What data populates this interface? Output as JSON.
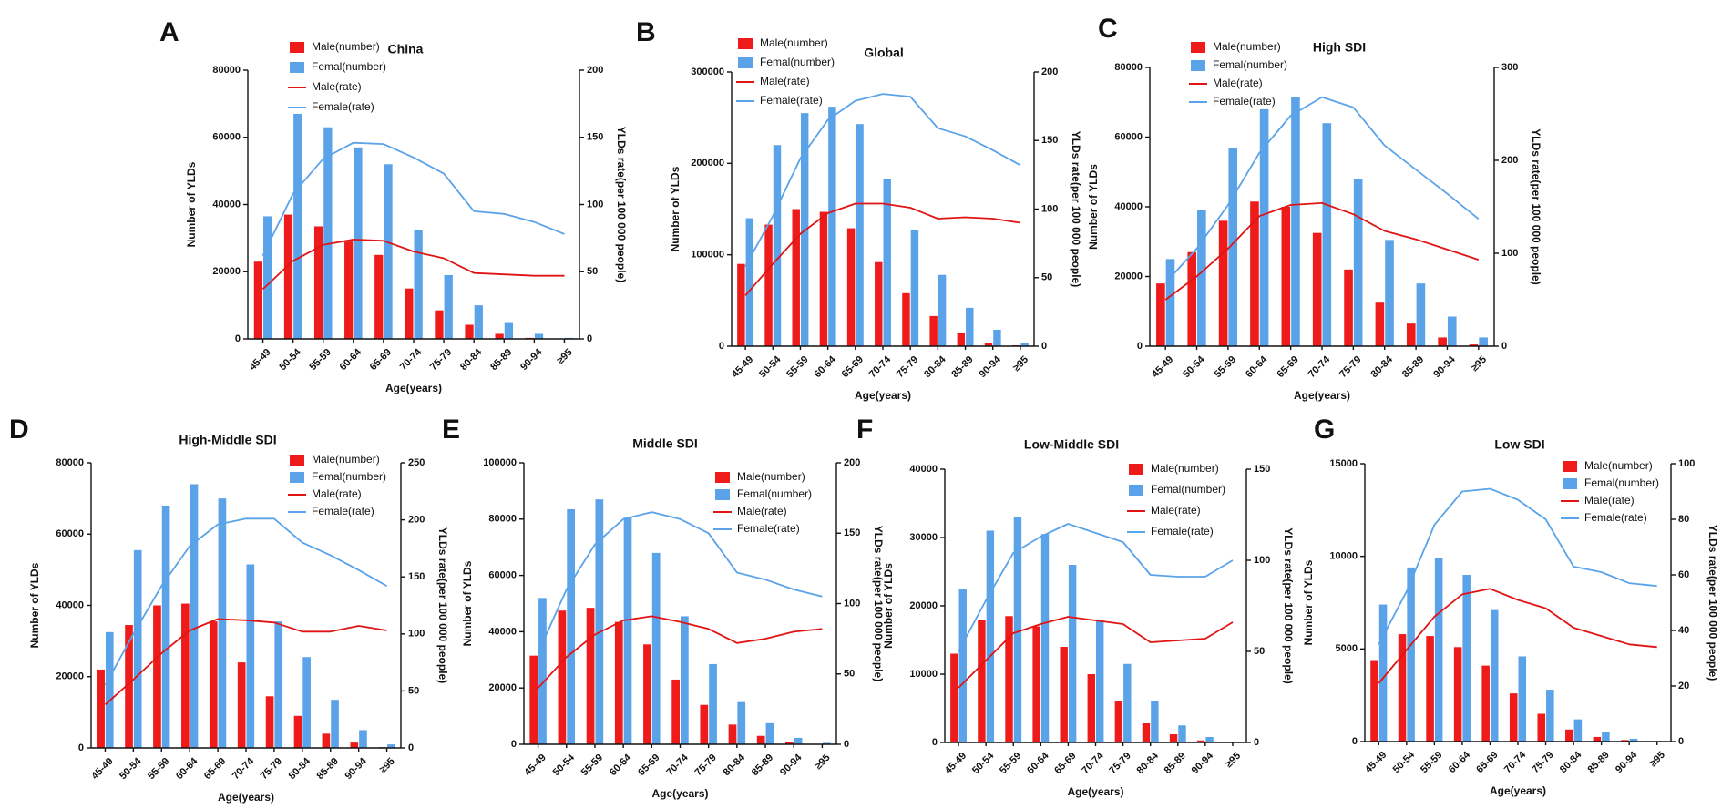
{
  "colors": {
    "male_bar": "#ef1b1b",
    "female_bar": "#5ba3e8",
    "male_line": "#e01414",
    "female_line": "#5ba3e8"
  },
  "chart_data": [
    {
      "letter": "A",
      "title": "China",
      "type": "bar+line",
      "categories": [
        "45-49",
        "50-54",
        "55-59",
        "60-64",
        "65-69",
        "70-74",
        "75-79",
        "80-84",
        "85-89",
        "90-94",
        "≥95"
      ],
      "xlabel": "Age(years)",
      "ylabel": "Number of YLDs",
      "y2label": "YLDs rate(per 100 000 people)",
      "ylim": [
        0,
        80000
      ],
      "yticks": [
        0,
        20000,
        40000,
        60000,
        80000
      ],
      "y2lim": [
        0,
        200
      ],
      "y2ticks": [
        0,
        50,
        100,
        150,
        200
      ],
      "legend": [
        "Male(number)",
        "Femal(number)",
        "Male(rate)",
        "Female(rate)"
      ],
      "series": [
        {
          "name": "Male(number)",
          "kind": "bar",
          "values": [
            23000,
            37000,
            33500,
            29000,
            25000,
            15000,
            8500,
            4200,
            1500,
            300,
            0
          ]
        },
        {
          "name": "Femal(number)",
          "kind": "bar",
          "values": [
            36500,
            67000,
            63000,
            57000,
            52000,
            32500,
            19000,
            10000,
            5000,
            1500,
            300
          ]
        },
        {
          "name": "Male(rate)",
          "kind": "line",
          "values": [
            37,
            58,
            70,
            74,
            73,
            65,
            60,
            49,
            48,
            47,
            47
          ]
        },
        {
          "name": "Female(rate)",
          "kind": "line",
          "values": [
            62,
            108,
            134,
            146,
            145,
            135,
            123,
            95,
            93,
            87,
            78
          ]
        }
      ]
    },
    {
      "letter": "B",
      "title": "Global",
      "type": "bar+line",
      "categories": [
        "45-49",
        "50-54",
        "55-59",
        "60-64",
        "65-69",
        "70-74",
        "75-79",
        "80-84",
        "85-89",
        "90-94",
        "≥95"
      ],
      "xlabel": "Age(years)",
      "ylabel": "Number of YLDs",
      "y2label": "YLDs rate(per 100 000 people)",
      "ylim": [
        0,
        300000
      ],
      "yticks": [
        0,
        100000,
        200000,
        300000
      ],
      "y2lim": [
        0,
        200
      ],
      "y2ticks": [
        0,
        50,
        100,
        150,
        200
      ],
      "legend": [
        "Male(number)",
        "Femal(number)",
        "Male(rate)",
        "Female(rate)"
      ],
      "series": [
        {
          "name": "Male(number)",
          "kind": "bar",
          "values": [
            90000,
            133000,
            150000,
            147000,
            129000,
            92000,
            58000,
            33000,
            15000,
            4000,
            1000
          ]
        },
        {
          "name": "Femal(number)",
          "kind": "bar",
          "values": [
            140000,
            220000,
            255000,
            262000,
            243000,
            183000,
            127000,
            78000,
            42000,
            18000,
            4000
          ]
        },
        {
          "name": "Male(rate)",
          "kind": "line",
          "values": [
            37,
            60,
            82,
            97,
            104,
            104,
            101,
            93,
            94,
            93,
            90
          ]
        },
        {
          "name": "Female(rate)",
          "kind": "line",
          "values": [
            58,
            95,
            137,
            165,
            179,
            184,
            182,
            159,
            153,
            143,
            132
          ]
        }
      ]
    },
    {
      "letter": "C",
      "title": "High SDI",
      "type": "bar+line",
      "categories": [
        "45-49",
        "50-54",
        "55-59",
        "60-64",
        "65-69",
        "70-74",
        "75-79",
        "80-84",
        "85-89",
        "90-94",
        "≥95"
      ],
      "xlabel": "Age(years)",
      "ylabel": "Number of YLDs",
      "y2label": "YLDs rate(per 100 000 people)",
      "ylim": [
        0,
        80000
      ],
      "yticks": [
        0,
        20000,
        40000,
        60000,
        80000
      ],
      "y2lim": [
        0,
        300
      ],
      "y2ticks": [
        0,
        100,
        200,
        300
      ],
      "legend": [
        "Male(number)",
        "Femal(number)",
        "Male(rate)",
        "Female(rate)"
      ],
      "series": [
        {
          "name": "Male(number)",
          "kind": "bar",
          "values": [
            18000,
            27000,
            36000,
            41500,
            40000,
            32500,
            22000,
            12500,
            6500,
            2500,
            500
          ]
        },
        {
          "name": "Femal(number)",
          "kind": "bar",
          "values": [
            25000,
            39000,
            57000,
            68000,
            71500,
            64000,
            48000,
            30500,
            18000,
            8500,
            2500
          ]
        },
        {
          "name": "Male(rate)",
          "kind": "line",
          "values": [
            50,
            75,
            105,
            140,
            152,
            154,
            142,
            124,
            115,
            104,
            93
          ]
        },
        {
          "name": "Female(rate)",
          "kind": "line",
          "values": [
            68,
            105,
            152,
            208,
            248,
            268,
            257,
            216,
            190,
            164,
            137
          ]
        }
      ]
    },
    {
      "letter": "D",
      "title": "High-Middle SDI",
      "type": "bar+line",
      "categories": [
        "45-49",
        "50-54",
        "55-59",
        "60-64",
        "65-69",
        "70-74",
        "75-79",
        "80-84",
        "85-89",
        "90-94",
        "≥95"
      ],
      "xlabel": "Age(years)",
      "ylabel": "Number of YLDs",
      "y2label": "YLDs rate(per 100 000 people)",
      "ylim": [
        0,
        80000
      ],
      "yticks": [
        0,
        20000,
        40000,
        60000,
        80000
      ],
      "y2lim": [
        0,
        250
      ],
      "y2ticks": [
        0,
        50,
        100,
        150,
        200,
        250
      ],
      "legend": [
        "Male(number)",
        "Femal(number)",
        "Male(rate)",
        "Female(rate)"
      ],
      "series": [
        {
          "name": "Male(number)",
          "kind": "bar",
          "values": [
            22000,
            34500,
            40000,
            40500,
            35500,
            24000,
            14500,
            9000,
            4000,
            1500,
            200
          ]
        },
        {
          "name": "Femal(number)",
          "kind": "bar",
          "values": [
            32500,
            55500,
            68000,
            74000,
            70000,
            51500,
            35500,
            25500,
            13500,
            5000,
            1000
          ]
        },
        {
          "name": "Male(rate)",
          "kind": "line",
          "values": [
            38,
            60,
            83,
            103,
            113,
            112,
            110,
            102,
            102,
            107,
            103
          ]
        },
        {
          "name": "Female(rate)",
          "kind": "line",
          "values": [
            55,
            100,
            142,
            177,
            196,
            201,
            201,
            180,
            169,
            156,
            142
          ]
        }
      ]
    },
    {
      "letter": "E",
      "title": "Middle SDI",
      "type": "bar+line",
      "categories": [
        "45-49",
        "50-54",
        "55-59",
        "60-64",
        "65-69",
        "70-74",
        "75-79",
        "80-84",
        "85-89",
        "90-94",
        "≥95"
      ],
      "xlabel": "Age(years)",
      "ylabel": "Number of YLDs",
      "y2label": "YLDs rate(per 100 000 people)",
      "ylim": [
        0,
        100000
      ],
      "yticks": [
        0,
        20000,
        40000,
        60000,
        80000,
        100000
      ],
      "y2lim": [
        0,
        200
      ],
      "y2ticks": [
        0,
        50,
        100,
        150,
        200
      ],
      "legend": [
        "Male(number)",
        "Femal(number)",
        "Male(rate)",
        "Female(rate)"
      ],
      "series": [
        {
          "name": "Male(number)",
          "kind": "bar",
          "values": [
            31500,
            47500,
            48500,
            43500,
            35500,
            23000,
            14000,
            7000,
            3000,
            800,
            100
          ]
        },
        {
          "name": "Femal(number)",
          "kind": "bar",
          "values": [
            52000,
            83500,
            87000,
            80500,
            68000,
            45500,
            28500,
            15000,
            7500,
            2300,
            500
          ]
        },
        {
          "name": "Male(rate)",
          "kind": "line",
          "values": [
            40,
            62,
            78,
            88,
            91,
            87,
            82,
            72,
            75,
            80,
            82
          ]
        },
        {
          "name": "Female(rate)",
          "kind": "line",
          "values": [
            65,
            110,
            142,
            160,
            165,
            160,
            150,
            122,
            117,
            110,
            105
          ]
        }
      ]
    },
    {
      "letter": "F",
      "title": "Low-Middle SDI",
      "type": "bar+line",
      "categories": [
        "45-49",
        "50-54",
        "55-59",
        "60-64",
        "65-69",
        "70-74",
        "75-79",
        "80-84",
        "85-89",
        "90-94",
        "≥95"
      ],
      "xlabel": "Age(years)",
      "ylabel": "Number of YLDs",
      "y2label": "YLDs rate(per 100 000 people)",
      "ylim": [
        0,
        40000
      ],
      "yticks": [
        0,
        10000,
        20000,
        30000,
        40000
      ],
      "y2lim": [
        0,
        150
      ],
      "y2ticks": [
        0,
        50,
        100,
        150
      ],
      "legend": [
        "Male(number)",
        "Femal(number)",
        "Male(rate)",
        "Female(rate)"
      ],
      "series": [
        {
          "name": "Male(number)",
          "kind": "bar",
          "values": [
            13000,
            18000,
            18500,
            17000,
            14000,
            10000,
            6000,
            2800,
            1200,
            300,
            0
          ]
        },
        {
          "name": "Femal(number)",
          "kind": "bar",
          "values": [
            22500,
            31000,
            33000,
            30500,
            26000,
            18000,
            11500,
            6000,
            2500,
            800,
            100
          ]
        },
        {
          "name": "Male(rate)",
          "kind": "line",
          "values": [
            30,
            45,
            60,
            65,
            69,
            67,
            65,
            55,
            56,
            57,
            66
          ]
        },
        {
          "name": "Female(rate)",
          "kind": "line",
          "values": [
            50,
            78,
            104,
            113,
            120,
            115,
            110,
            92,
            91,
            91,
            100
          ]
        }
      ]
    },
    {
      "letter": "G",
      "title": "Low SDI",
      "type": "bar+line",
      "categories": [
        "45-49",
        "50-54",
        "55-59",
        "60-64",
        "65-69",
        "70-74",
        "75-79",
        "80-84",
        "85-89",
        "90-94",
        "≥95"
      ],
      "xlabel": "Age(years)",
      "ylabel": "Number of YLDs",
      "y2label": "YLDs rate(per 100 000 people)",
      "ylim": [
        0,
        15000
      ],
      "yticks": [
        0,
        5000,
        10000,
        15000
      ],
      "y2lim": [
        0,
        100
      ],
      "y2ticks": [
        0,
        20,
        40,
        60,
        80,
        100
      ],
      "legend": [
        "Male(number)",
        "Femal(number)",
        "Male(rate)",
        "Female(rate)"
      ],
      "series": [
        {
          "name": "Male(number)",
          "kind": "bar",
          "values": [
            4400,
            5800,
            5700,
            5100,
            4100,
            2600,
            1500,
            650,
            250,
            80,
            10
          ]
        },
        {
          "name": "Femal(number)",
          "kind": "bar",
          "values": [
            7400,
            9400,
            9900,
            9000,
            7100,
            4600,
            2800,
            1200,
            500,
            150,
            30
          ]
        },
        {
          "name": "Male(rate)",
          "kind": "line",
          "values": [
            21,
            33,
            45,
            53,
            55,
            51,
            48,
            41,
            38,
            35,
            34
          ]
        },
        {
          "name": "Female(rate)",
          "kind": "line",
          "values": [
            35,
            54,
            78,
            90,
            91,
            87,
            80,
            63,
            61,
            57,
            56
          ]
        }
      ]
    }
  ]
}
